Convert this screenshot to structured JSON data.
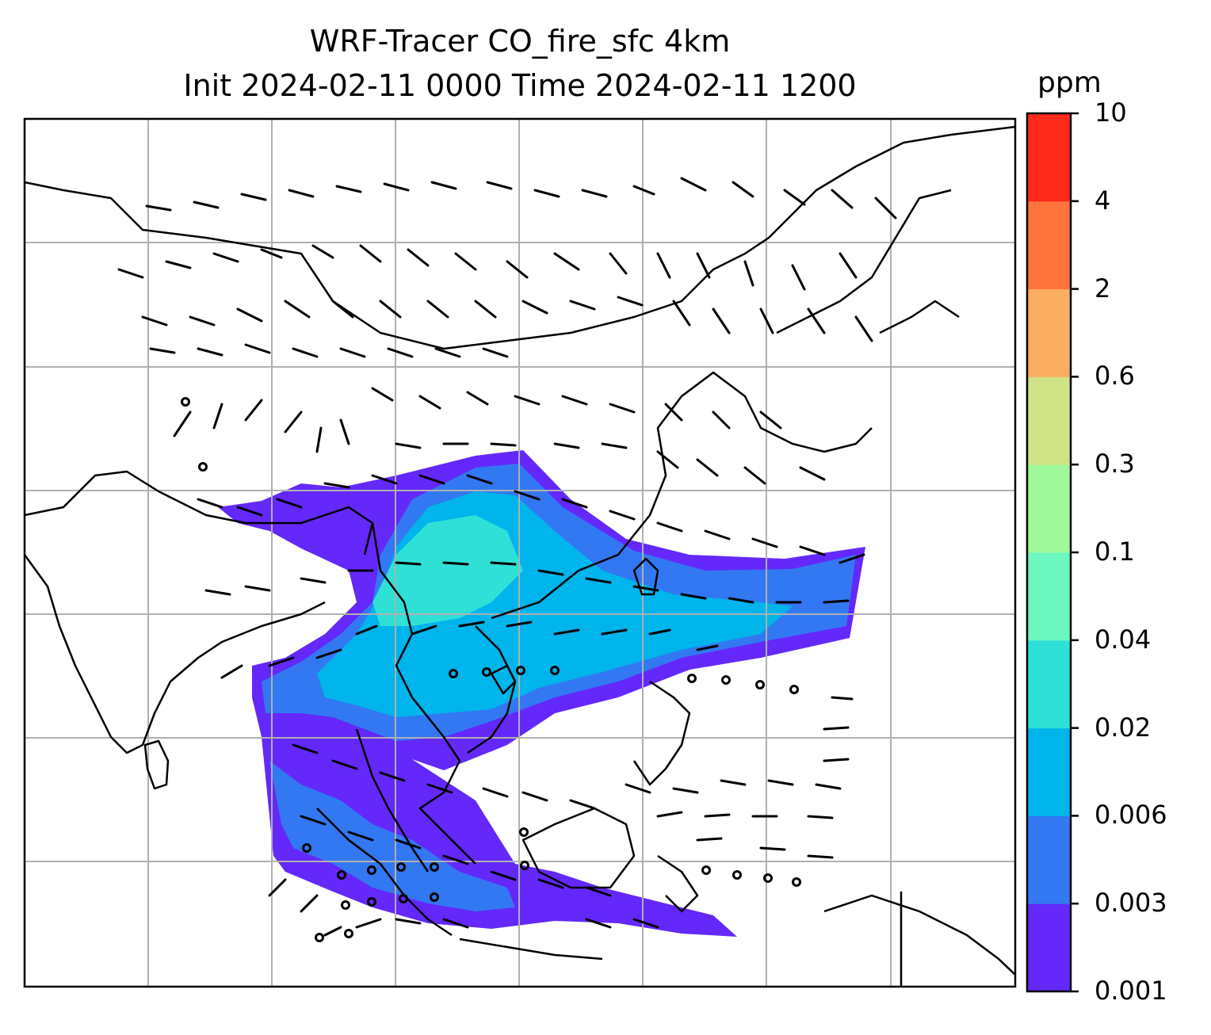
{
  "title_line1": "WRF-Tracer CO_fire_sfc 4km",
  "title_line2": "Init 2024-02-11 0000 Time 2024-02-11 1200",
  "colorbar": {
    "unit": "ppm",
    "levels": [
      "0.001",
      "0.003",
      "0.006",
      "0.02",
      "0.04",
      "0.1",
      "0.3",
      "0.6",
      "2",
      "4",
      "10"
    ],
    "colors": [
      "#6428fa",
      "#3278f2",
      "#00b4ec",
      "#2ee0d6",
      "#6cf8c0",
      "#9ff99a",
      "#d0e386",
      "#fcae60",
      "#ff743c",
      "#ff2a1a"
    ]
  },
  "map": {
    "gridlines": "gray, every 10 degrees",
    "wind_barbs": "black",
    "coastlines": "black"
  }
}
